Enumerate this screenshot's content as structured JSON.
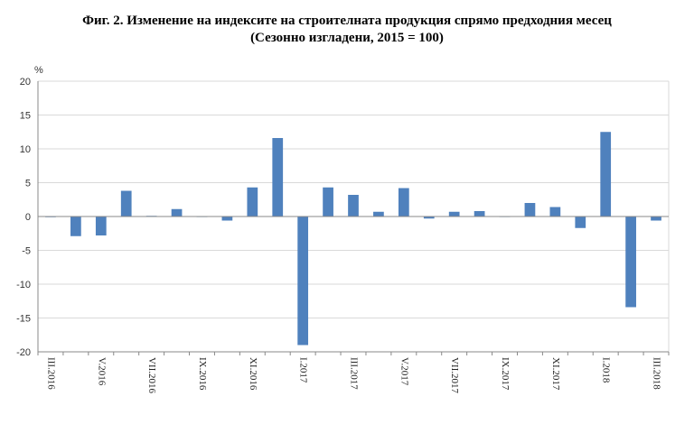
{
  "chart_data": {
    "type": "bar",
    "title": "Фиг. 2. Изменение на индексите на строителната продукция спрямо предходния месец",
    "subtitle": "(Сезонно изгладени, 2015 = 100)",
    "ylabel": "%",
    "ylim": [
      -20,
      20
    ],
    "yticks": [
      20,
      15,
      10,
      5,
      0,
      -5,
      -10,
      -15,
      -20
    ],
    "grid": true,
    "color": "#4f81bd",
    "categories": [
      "III.2016",
      "IV.2016",
      "V.2016",
      "VI.2016",
      "VII.2016",
      "VIII.2016",
      "IX.2016",
      "X.2016",
      "XI.2016",
      "XII.2016",
      "I.2017",
      "II.2017",
      "III.2017",
      "IV.2017",
      "V.2017",
      "VI.2017",
      "VII.2017",
      "VIII.2017",
      "IX.2017",
      "X.2017",
      "XI.2017",
      "XII.2017",
      "I.2018",
      "II.2018",
      "III.2018"
    ],
    "shown_category_labels": [
      "III.2016",
      "V.2016",
      "VII.2016",
      "IX.2016",
      "XI.2016",
      "I.2017",
      "III.2017",
      "V.2017",
      "VII.2017",
      "IX.2017",
      "XI.2017",
      "I.2018",
      "III.2018"
    ],
    "values": [
      -0.1,
      -2.9,
      -2.8,
      3.8,
      0.1,
      1.1,
      0.0,
      -0.6,
      4.3,
      11.6,
      -19.0,
      4.3,
      3.2,
      0.7,
      4.2,
      -0.3,
      0.7,
      0.8,
      0.0,
      2.0,
      1.4,
      -1.7,
      12.5,
      -13.4,
      -0.6
    ]
  }
}
